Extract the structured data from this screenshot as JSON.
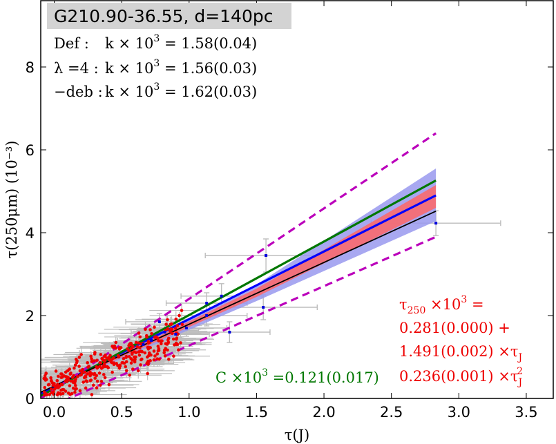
{
  "chart_data": {
    "type": "scatter",
    "title": "G210.90-36.55, d=140pc",
    "xlabel": "τ(J)",
    "ylabel": "τ(250μm) (10⁻³)",
    "xlim": [
      -0.1,
      3.7
    ],
    "ylim": [
      0,
      9.6
    ],
    "xticks": [
      "0.0",
      "0.5",
      "1.0",
      "1.5",
      "2.0",
      "2.5",
      "3.0",
      "3.5"
    ],
    "yticks": [
      "0",
      "2",
      "4",
      "6",
      "8"
    ],
    "fit_lines": [
      {
        "name": "Def",
        "color": "#0000ff",
        "x": [
          -0.1,
          2.83
        ],
        "y": [
          0.12,
          4.9
        ]
      },
      {
        "name": "λ=4",
        "color": "#000000",
        "x": [
          -0.1,
          2.83
        ],
        "y": [
          0.15,
          4.52
        ]
      },
      {
        "name": "-deb",
        "color": "#007700",
        "x": [
          -0.1,
          2.83
        ],
        "y": [
          0.06,
          5.26
        ]
      },
      {
        "name": "upper dashed",
        "color": "#bb00bb",
        "x": [
          -0.1,
          2.83
        ],
        "y": [
          0.0,
          6.4
        ]
      },
      {
        "name": "lower dashed",
        "color": "#bb00bb",
        "x": [
          -0.1,
          2.83
        ],
        "y": [
          -0.3,
          3.9
        ]
      }
    ],
    "confidence_bands": [
      {
        "name": "blue band",
        "color": "#9999ee",
        "x": [
          1.5,
          2.83
        ],
        "lower": [
          2.35,
          4.28
        ],
        "upper": [
          2.75,
          5.55
        ]
      },
      {
        "name": "red band",
        "color": "#ff6666",
        "x": [
          1.5,
          2.83
        ],
        "lower": [
          2.45,
          4.6
        ],
        "upper": [
          2.65,
          5.15
        ]
      }
    ],
    "highlighted_points": [
      {
        "x": 1.57,
        "y": 3.45,
        "xerr": 0.45,
        "yerr": 0.4
      },
      {
        "x": 2.83,
        "y": 4.23,
        "xerr": 0.48,
        "yerr": 0.3
      },
      {
        "x": 1.24,
        "y": 2.47,
        "xerr": 0.3,
        "yerr": 0.3
      },
      {
        "x": 1.13,
        "y": 2.3,
        "xerr": 0.3,
        "yerr": 0.25
      },
      {
        "x": 1.13,
        "y": 2.0,
        "xerr": 0.3,
        "yerr": 0.25
      },
      {
        "x": 1.55,
        "y": 2.2,
        "xerr": 0.4,
        "yerr": 0.3
      },
      {
        "x": 1.3,
        "y": 1.6,
        "xerr": 0.3,
        "yerr": 0.25
      },
      {
        "x": 0.78,
        "y": 1.85,
        "xerr": 0.25,
        "yerr": 0.2
      },
      {
        "x": 0.82,
        "y": 1.6,
        "xerr": 0.25,
        "yerr": 0.2
      },
      {
        "x": 0.9,
        "y": 1.55,
        "xerr": 0.25,
        "yerr": 0.2
      },
      {
        "x": 0.72,
        "y": 1.4,
        "xerr": 0.25,
        "yerr": 0.2
      },
      {
        "x": 0.66,
        "y": 1.3,
        "xerr": 0.25,
        "yerr": 0.2
      },
      {
        "x": 0.98,
        "y": 1.7,
        "xerr": 0.3,
        "yerr": 0.2
      }
    ],
    "cloud": {
      "x_range": [
        -0.08,
        0.95
      ],
      "y_center_slope": 1.38,
      "y_intercept": 0.28,
      "scatter": 0.22,
      "xerr": 0.28,
      "count": 320
    },
    "annotations": {
      "model_lines": [
        {
          "prefix": "Def :",
          "mid": "k  × 10",
          "exp": "3",
          "suffix": "  = 1.58(0.04)"
        },
        {
          "prefix": "λ =4 :",
          "mid": "k  × 10",
          "exp": "3",
          "suffix": "  = 1.56(0.03)"
        },
        {
          "prefix": "−deb :",
          "mid": "k  × 10",
          "exp": "3",
          "suffix": "  = 1.62(0.03)"
        }
      ],
      "fit_red": {
        "line1_a": "τ",
        "line1_sub": "250",
        "line1_b": " ×10",
        "line1_exp": "3",
        "line1_c": "   =",
        "line2": "0.281(0.000) +",
        "line3_a": "1.491(0.002) ×τ",
        "line3_sub": "J",
        "line4_a": "0.236(0.001) ×τ",
        "line4_sub": "J",
        "line4_exp": "2"
      },
      "fit_green": {
        "a": "C ×10",
        "exp": "3",
        "b": " =0.121(0.017)"
      }
    }
  }
}
